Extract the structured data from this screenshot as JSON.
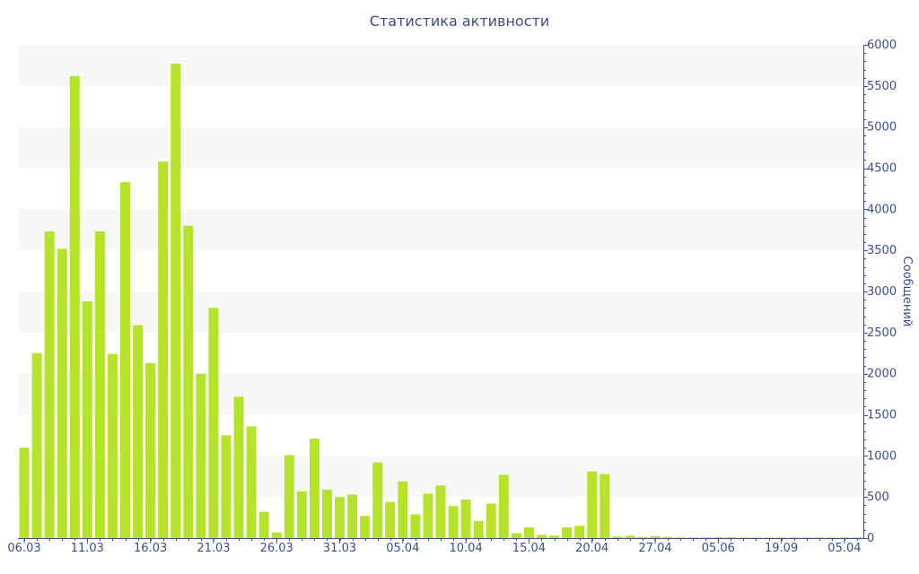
{
  "colors": {
    "bar": "#b5e22a",
    "band": "#f7f7f7",
    "axis": "#3b4f86"
  },
  "chart_data": {
    "type": "bar",
    "title": "Статистика активности",
    "ylabel": "Сообщений",
    "xlabel": "",
    "ylim": [
      0,
      6000
    ],
    "y_ticks": [
      0,
      500,
      1000,
      1500,
      2000,
      2500,
      3000,
      3500,
      4000,
      4500,
      5000,
      5500,
      6000
    ],
    "y_axis_side": "right",
    "grid": "alternating horizontal bands",
    "legend": "none",
    "x_tick_labels": [
      {
        "label": "06.03",
        "index": 0
      },
      {
        "label": "11.03",
        "index": 5
      },
      {
        "label": "16.03",
        "index": 10
      },
      {
        "label": "21.03",
        "index": 15
      },
      {
        "label": "26.03",
        "index": 20
      },
      {
        "label": "31.03",
        "index": 25
      },
      {
        "label": "05.04",
        "index": 30
      },
      {
        "label": "10.04",
        "index": 35
      },
      {
        "label": "15.04",
        "index": 40
      },
      {
        "label": "20.04",
        "index": 45
      },
      {
        "label": "27.04",
        "index": 50
      },
      {
        "label": "05.06",
        "index": 55
      },
      {
        "label": "19.09",
        "index": 60
      },
      {
        "label": "05.04",
        "index": 65
      }
    ],
    "values": [
      1100,
      2250,
      3730,
      3520,
      5620,
      2880,
      3730,
      2240,
      4330,
      2590,
      2130,
      4580,
      5770,
      3800,
      2000,
      2800,
      1250,
      1720,
      1360,
      320,
      70,
      1010,
      570,
      1210,
      590,
      500,
      530,
      270,
      920,
      440,
      690,
      290,
      540,
      640,
      390,
      470,
      210,
      420,
      770,
      60,
      130,
      40,
      30,
      130,
      150,
      810,
      780,
      20,
      30,
      15,
      25,
      15,
      10,
      10,
      10,
      10,
      10,
      8,
      8,
      8,
      8,
      8,
      8,
      8,
      8,
      8,
      10
    ]
  }
}
